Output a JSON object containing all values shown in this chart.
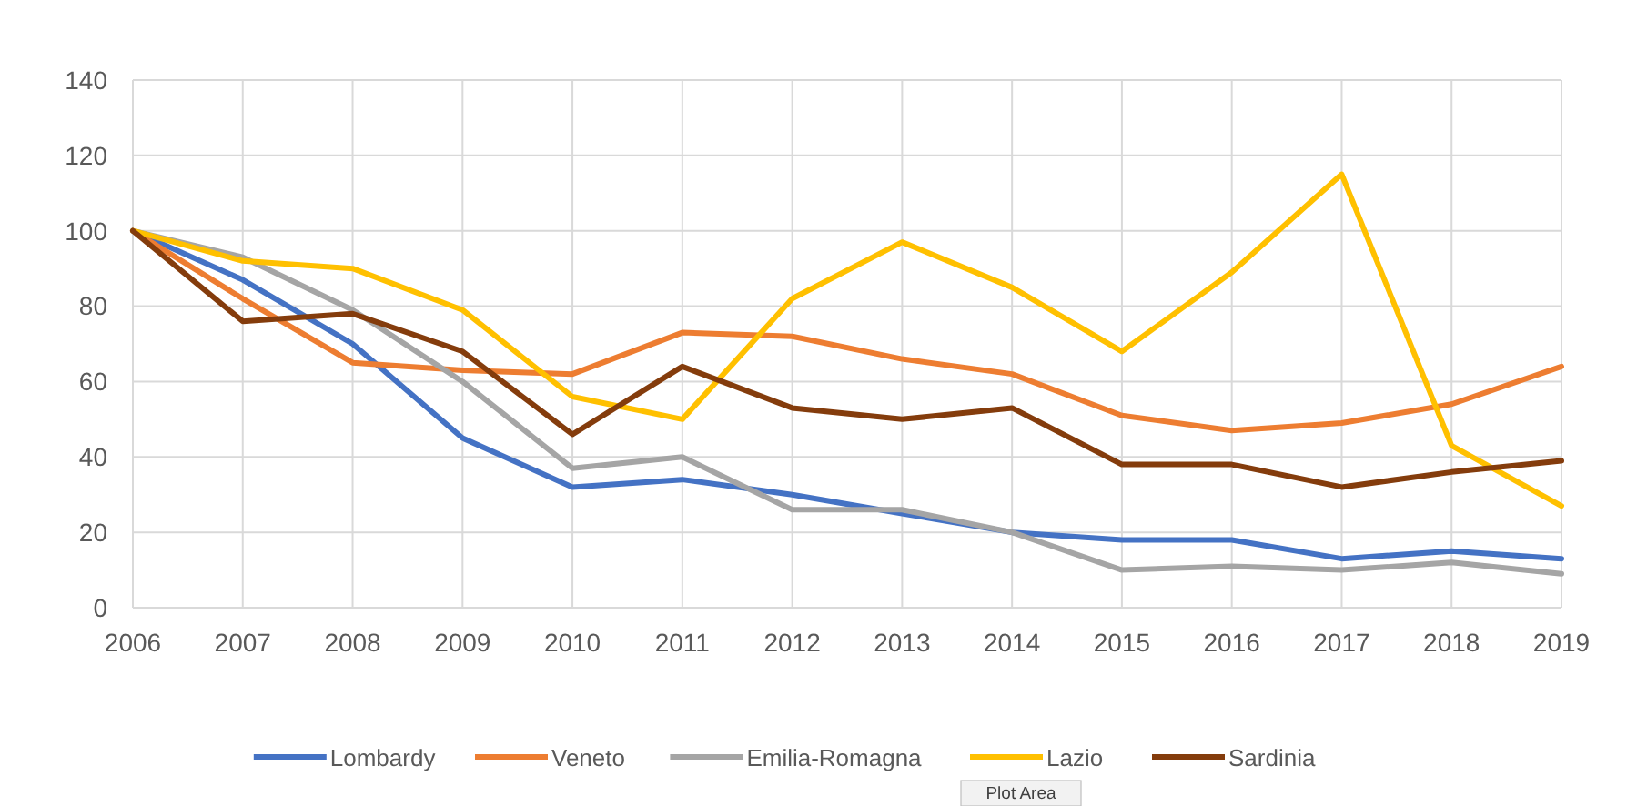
{
  "chart_data": {
    "type": "line",
    "categories": [
      "2006",
      "2007",
      "2008",
      "2009",
      "2010",
      "2011",
      "2012",
      "2013",
      "2014",
      "2015",
      "2016",
      "2017",
      "2018",
      "2019"
    ],
    "ylim": [
      0,
      140
    ],
    "yticks": [
      0,
      20,
      40,
      60,
      80,
      100,
      120,
      140
    ],
    "grid": true,
    "legend": "bottom",
    "line_style": "solid",
    "marker": "none",
    "series": [
      {
        "name": "Lombardy",
        "color": "#4472c4",
        "values": [
          100,
          87,
          70,
          45,
          32,
          34,
          30,
          25,
          20,
          18,
          18,
          13,
          15,
          13
        ]
      },
      {
        "name": "Veneto",
        "color": "#ed7d31",
        "values": [
          100,
          82,
          65,
          63,
          62,
          73,
          72,
          66,
          62,
          51,
          47,
          49,
          54,
          64
        ]
      },
      {
        "name": "Emilia-Romagna",
        "color": "#a5a5a5",
        "values": [
          100,
          93,
          79,
          60,
          37,
          40,
          26,
          26,
          20,
          10,
          11,
          10,
          12,
          9
        ]
      },
      {
        "name": "Lazio",
        "color": "#ffc000",
        "values": [
          100,
          92,
          90,
          79,
          56,
          50,
          82,
          97,
          85,
          68,
          89,
          115,
          43,
          27
        ]
      },
      {
        "name": "Sardinia",
        "color": "#843c0c",
        "values": [
          100,
          76,
          78,
          68,
          46,
          64,
          53,
          50,
          53,
          38,
          38,
          32,
          36,
          39
        ]
      }
    ],
    "annotations": [
      "Plot Area"
    ]
  }
}
